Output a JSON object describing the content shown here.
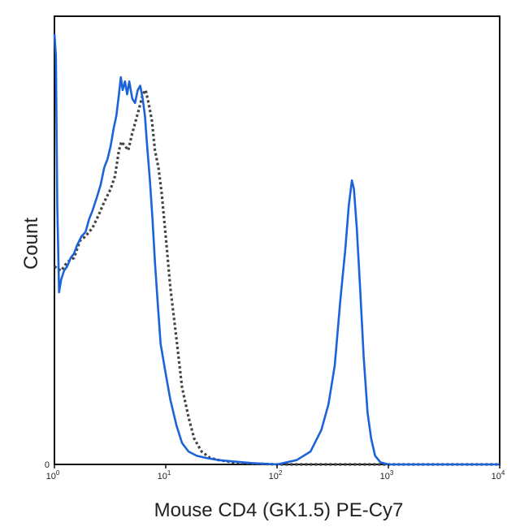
{
  "chart_data": {
    "type": "line",
    "title": "",
    "xlabel": "Mouse CD4 (GK1.5) PE-Cy7",
    "ylabel": "Count",
    "x_scale": "log",
    "xlim": [
      1,
      10000
    ],
    "ylim": [
      0,
      1
    ],
    "x_ticks": [
      {
        "value": 1,
        "base": "10",
        "exp": "0"
      },
      {
        "value": 10,
        "base": "10",
        "exp": "1"
      },
      {
        "value": 100,
        "base": "10",
        "exp": "2"
      },
      {
        "value": 1000,
        "base": "10",
        "exp": "3"
      },
      {
        "value": 10000,
        "base": "10",
        "exp": "4"
      }
    ],
    "y_ticks": [
      {
        "value": 0,
        "label": "0"
      }
    ],
    "grid": false,
    "legend": "none",
    "series": [
      {
        "color": "#444444",
        "style": "dotted",
        "x": [
          1.0,
          1.15,
          1.3,
          1.5,
          1.7,
          1.9,
          2.2,
          2.5,
          2.8,
          3.2,
          3.5,
          3.8,
          4.0,
          4.3,
          4.6,
          5.0,
          5.4,
          5.8,
          6.2,
          6.6,
          7.0,
          7.5,
          8.0,
          8.6,
          9.2,
          10.0,
          11.0,
          12.5,
          14.0,
          16.0,
          18.0,
          21.0,
          25.0,
          30.0,
          40.0,
          60.0,
          100.0,
          200.0,
          500.0,
          1000.0,
          10000.0
        ],
        "values": [
          0.46,
          0.45,
          0.47,
          0.48,
          0.52,
          0.53,
          0.55,
          0.58,
          0.61,
          0.64,
          0.67,
          0.73,
          0.75,
          0.74,
          0.73,
          0.77,
          0.8,
          0.83,
          0.86,
          0.87,
          0.84,
          0.8,
          0.73,
          0.69,
          0.63,
          0.53,
          0.41,
          0.29,
          0.18,
          0.11,
          0.06,
          0.03,
          0.015,
          0.01,
          0.005,
          0.002,
          0.0,
          0.0,
          0.0,
          0.0,
          0.0
        ]
      },
      {
        "color": "#1c63d9",
        "style": "solid",
        "x": [
          1.0,
          1.03,
          1.06,
          1.1,
          1.15,
          1.22,
          1.3,
          1.4,
          1.5,
          1.6,
          1.75,
          1.9,
          2.05,
          2.2,
          2.4,
          2.6,
          2.8,
          3.0,
          3.2,
          3.4,
          3.6,
          3.8,
          3.95,
          4.1,
          4.3,
          4.5,
          4.7,
          5.0,
          5.3,
          5.6,
          5.9,
          6.2,
          6.5,
          6.8,
          7.2,
          7.6,
          8.0,
          8.5,
          9.0,
          10.0,
          11.0,
          12.5,
          14.0,
          16.0,
          19.0,
          23.0,
          30.0,
          40.0,
          60.0,
          100.0,
          150.0,
          200.0,
          250.0,
          290.0,
          330.0,
          370.0,
          410.0,
          440.0,
          470.0,
          490.0,
          520.0,
          560.0,
          600.0,
          650.0,
          700.0,
          760.0,
          850.0,
          1000.0,
          10000.0
        ],
        "values": [
          1.0,
          0.95,
          0.6,
          0.4,
          0.43,
          0.45,
          0.46,
          0.48,
          0.49,
          0.51,
          0.53,
          0.54,
          0.57,
          0.59,
          0.62,
          0.65,
          0.69,
          0.71,
          0.74,
          0.78,
          0.81,
          0.86,
          0.9,
          0.87,
          0.89,
          0.86,
          0.89,
          0.85,
          0.84,
          0.87,
          0.88,
          0.85,
          0.81,
          0.74,
          0.66,
          0.57,
          0.47,
          0.37,
          0.28,
          0.21,
          0.15,
          0.09,
          0.05,
          0.03,
          0.02,
          0.015,
          0.01,
          0.007,
          0.003,
          0.0,
          0.01,
          0.03,
          0.08,
          0.14,
          0.23,
          0.38,
          0.5,
          0.6,
          0.66,
          0.64,
          0.55,
          0.4,
          0.25,
          0.12,
          0.06,
          0.02,
          0.005,
          0.0,
          0.0
        ]
      }
    ]
  }
}
